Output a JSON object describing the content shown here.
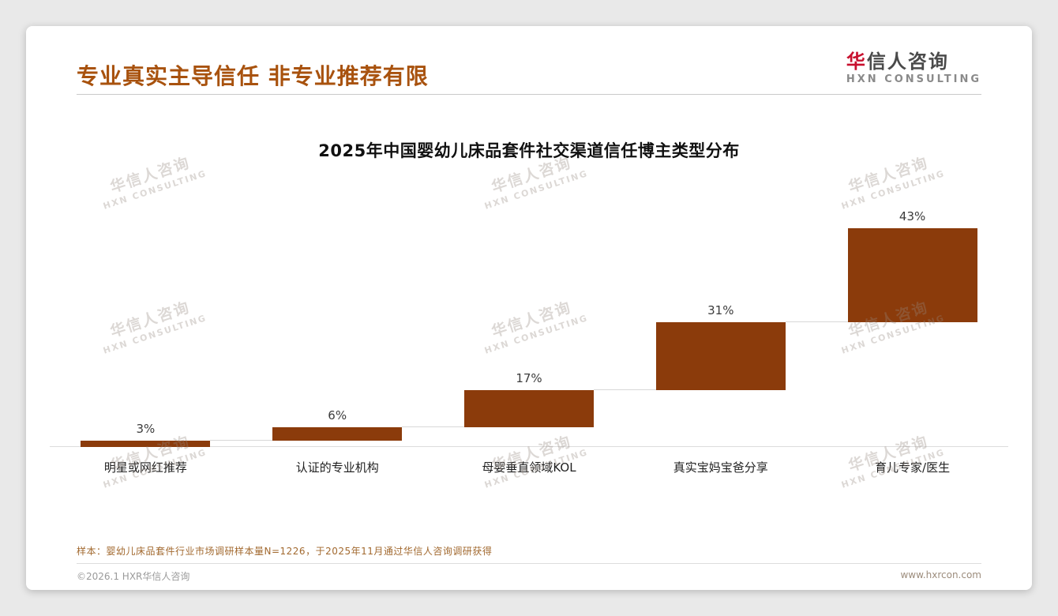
{
  "page": {
    "title": "专业真实主导信任 非专业推荐有限",
    "logo": {
      "cn_first": "华",
      "cn_rest": "信人咨询",
      "en": "HXN CONSULTING"
    },
    "watermark": {
      "line1": "华信人咨询",
      "line2": "HXN CONSULTING"
    },
    "sample_note": "样本：婴幼儿床品套件行业市场调研样本量N=1226，于2025年11月通过华信人咨询调研获得",
    "footer_left": "©2026.1 HXR华信人咨询",
    "footer_right": "www.hxrcon.com"
  },
  "colors": {
    "title_brown": "#a8520e",
    "bar_brown": "#8b3b0b",
    "logo_red": "#c8102e",
    "note_brown": "#a2692f"
  },
  "chart_data": {
    "type": "bar",
    "subtype": "waterfall-cumulative",
    "title": "2025年中国婴幼儿床品套件社交渠道信任博主类型分布",
    "categories": [
      "明星或网红推荐",
      "认证的专业机构",
      "母婴垂直领域KOL",
      "真实宝妈宝爸分享",
      "育儿专家/医生"
    ],
    "values": [
      3,
      6,
      17,
      31,
      43
    ],
    "value_labels": [
      "3%",
      "6%",
      "17%",
      "31%",
      "43%"
    ],
    "xlabel": "",
    "ylabel": "",
    "ylim": [
      0,
      100
    ],
    "grid": false,
    "legend": false,
    "bar_color": "#8b3b0b",
    "connector_color": "#d8d8d8"
  }
}
